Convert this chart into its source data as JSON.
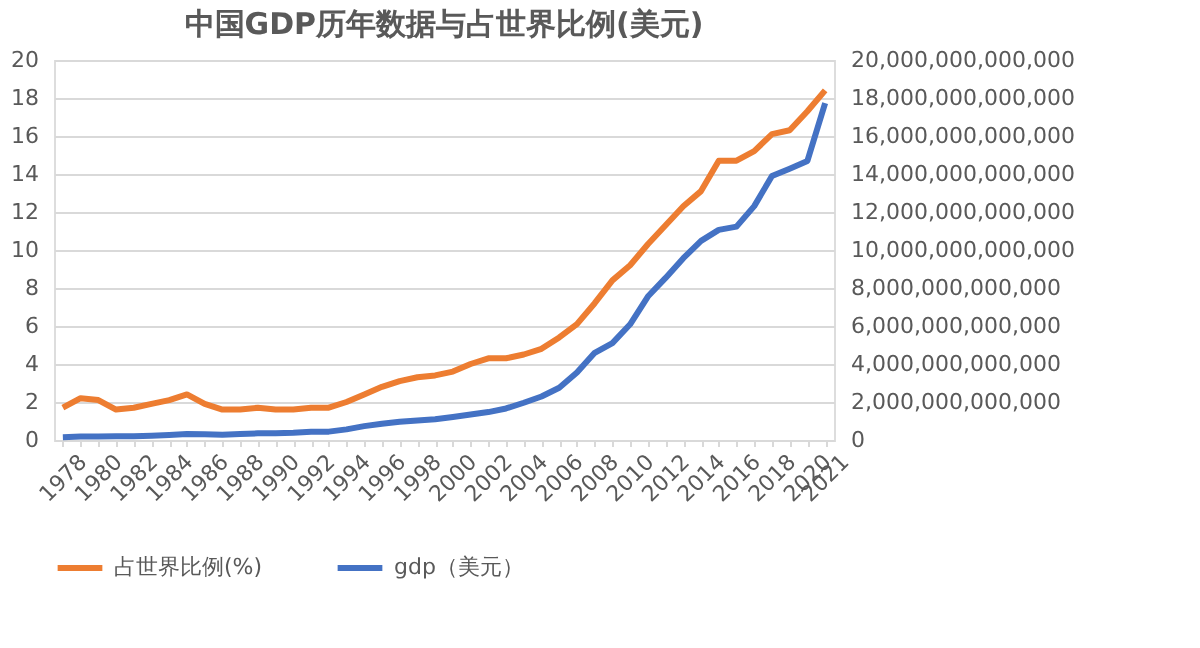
{
  "chart_data": {
    "type": "line",
    "title": "中国GDP历年数据与占世界比例(美元)",
    "categories": [
      "1978",
      null,
      "1980",
      null,
      "1982",
      null,
      "1984",
      null,
      "1986",
      null,
      "1988",
      null,
      "1990",
      null,
      "1992",
      null,
      "1994",
      null,
      "1996",
      null,
      "1998",
      null,
      "2000",
      null,
      "2002",
      null,
      "2004",
      null,
      "2006",
      null,
      "2008",
      null,
      "2010",
      null,
      "2012",
      null,
      "2014",
      null,
      "2016",
      null,
      "2018",
      null,
      "2020",
      "2021"
    ],
    "series": [
      {
        "name": "占世界比例(%)",
        "color": "#ed7d31",
        "axis": "y",
        "values": [
          1.7,
          2.2,
          2.1,
          1.6,
          1.7,
          1.9,
          2.1,
          2.4,
          1.9,
          1.6,
          1.6,
          1.7,
          1.6,
          1.6,
          1.7,
          1.7,
          2.0,
          2.4,
          2.8,
          3.1,
          3.3,
          3.4,
          3.6,
          4.0,
          4.3,
          4.3,
          4.5,
          4.8,
          5.4,
          6.1,
          7.2,
          8.4,
          9.2,
          10.3,
          11.3,
          12.3,
          13.1,
          14.7,
          14.7,
          15.2,
          16.1,
          16.3,
          17.3,
          18.4
        ]
      },
      {
        "name": "gdp（美元）",
        "color": "#4472c4",
        "axis": "y2",
        "values": [
          150000000000,
          180000000000,
          190000000000,
          200000000000,
          200000000000,
          230000000000,
          260000000000,
          310000000000,
          300000000000,
          270000000000,
          310000000000,
          350000000000,
          360000000000,
          380000000000,
          430000000000,
          440000000000,
          560000000000,
          730000000000,
          860000000000,
          960000000000,
          1030000000000,
          1090000000000,
          1210000000000,
          1340000000000,
          1470000000000,
          1660000000000,
          1960000000000,
          2290000000000,
          2750000000000,
          3550000000000,
          4590000000000,
          5100000000000,
          6090000000000,
          7550000000000,
          8530000000000,
          9570000000000,
          10480000000000,
          11060000000000,
          11230000000000,
          12310000000000,
          13890000000000,
          14280000000000,
          14690000000000,
          17730000000000
        ]
      }
    ],
    "ylim": [
      0,
      20
    ],
    "yticks": [
      0,
      2,
      4,
      6,
      8,
      10,
      12,
      14,
      16,
      18,
      20
    ],
    "y2lim": [
      0,
      20000000000000
    ],
    "y2ticks": [
      0,
      {
        "value": 2000000000000,
        "label": "2,000,000,000,000"
      },
      {
        "value": 4000000000000,
        "label": "4,000,000,000,000"
      },
      {
        "value": 6000000000000,
        "label": "6,000,000,000,000"
      },
      {
        "value": 8000000000000,
        "label": "8,000,000,000,000"
      },
      {
        "value": 10000000000000,
        "label": "10,000,000,000,000"
      },
      {
        "value": 12000000000000,
        "label": "12,000,000,000,000"
      },
      {
        "value": 14000000000000,
        "label": "14,000,000,000,000"
      },
      {
        "value": 16000000000000,
        "label": "16,000,000,000,000"
      },
      {
        "value": 18000000000000,
        "label": "18,000,000,000,000"
      },
      {
        "value": 20000000000000,
        "label": "20,000,000,000,000"
      }
    ],
    "grid": "y",
    "legend": "bottom",
    "marker": "none",
    "line_style": "solid"
  }
}
